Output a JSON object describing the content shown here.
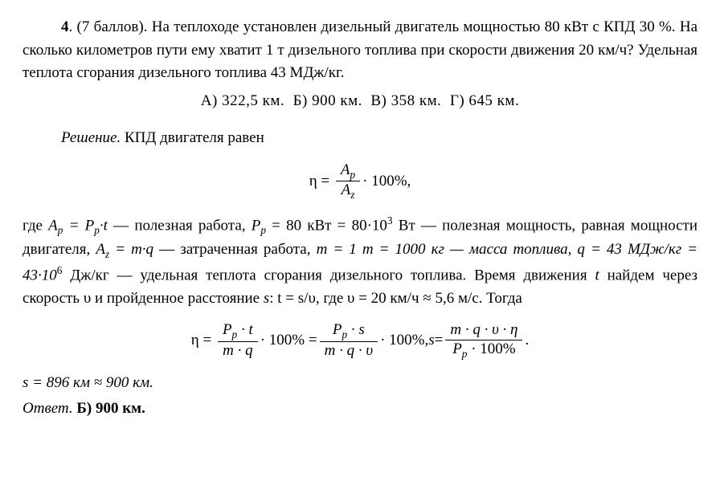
{
  "problem": {
    "number": "4",
    "points": "(7 баллов).",
    "text_part1": "На теплоходе установлен дизельный двигатель мощностью 80 кВт с КПД 30 %. На сколько километров пути ему хватит 1 т дизельного топлива при скорости движения 20 км/ч? Удельная теплота сгорания дизельного топлива 43 МДж/кг."
  },
  "choices": {
    "a": "А) 322,5 км.",
    "b": "Б) 900 км.",
    "c": "В) 358 км.",
    "d": "Г) 645 км."
  },
  "solution": {
    "heading": "Решение.",
    "intro": "КПД двигателя равен",
    "eq1": {
      "lhs": "η",
      "num": "A",
      "num_sub": "p",
      "den": "A",
      "den_sub": "z",
      "suffix": " · 100%,"
    },
    "explanation_1": "где ",
    "ap_label": "A",
    "ap_sub": "p",
    "eq_Pp_t": " = P",
    "pp_sub": "p",
    "pp_t_suffix": "·t",
    "explain_useful": " — полезная работа, ",
    "pp_label": "P",
    "pp_value": " = 80 кВт = 80·10",
    "pp_exp": "3",
    "pp_unit": " Вт — полезная мощность, равная мощности двигателя, ",
    "az_label": "A",
    "az_sub": "z",
    "az_eq": " = m·q",
    "az_explain": " — затраченная работа, ",
    "m_explain": "m = 1 т = 1000 кг — масса топлива, ",
    "q_explain_pre": "q = 43 МДж/кг = 43·10",
    "q_exp": "6",
    "q_explain_post": " Дж/кг — удельная теплота сгорания дизельного топлива. Время движения ",
    "t_var": "t",
    "t_explain": " найдем через скорость υ и пройденное расстояние ",
    "s_var": "s",
    "ts_eq": ": t = s/υ, где υ = 20 км/ч ≈ 5,6 м/с. Тогда",
    "eq2": {
      "eta": "η",
      "frac1_num_P": "P",
      "frac1_num_sub": "p",
      "frac1_num_t": " · t",
      "frac1_den": "m · q",
      "mult": " · 100% = ",
      "frac2_num_P": "P",
      "frac2_num_sub": "p",
      "frac2_num_s": " · s",
      "frac2_den": "m · q · υ",
      "mult2": " · 100%,   ",
      "s_lhs": "s",
      "s_eq": " = ",
      "frac3_num": "m · q · υ · η",
      "frac3_den_P": "P",
      "frac3_den_sub": "p",
      "frac3_den_rest": " · 100%",
      "period": "."
    },
    "result": "s = 896 км ≈ 900 км.",
    "answer_label": "Ответ.",
    "answer_value": "Б) 900 км."
  },
  "style": {
    "font_size_base": 19,
    "text_color": "#000000",
    "background": "#ffffff"
  }
}
